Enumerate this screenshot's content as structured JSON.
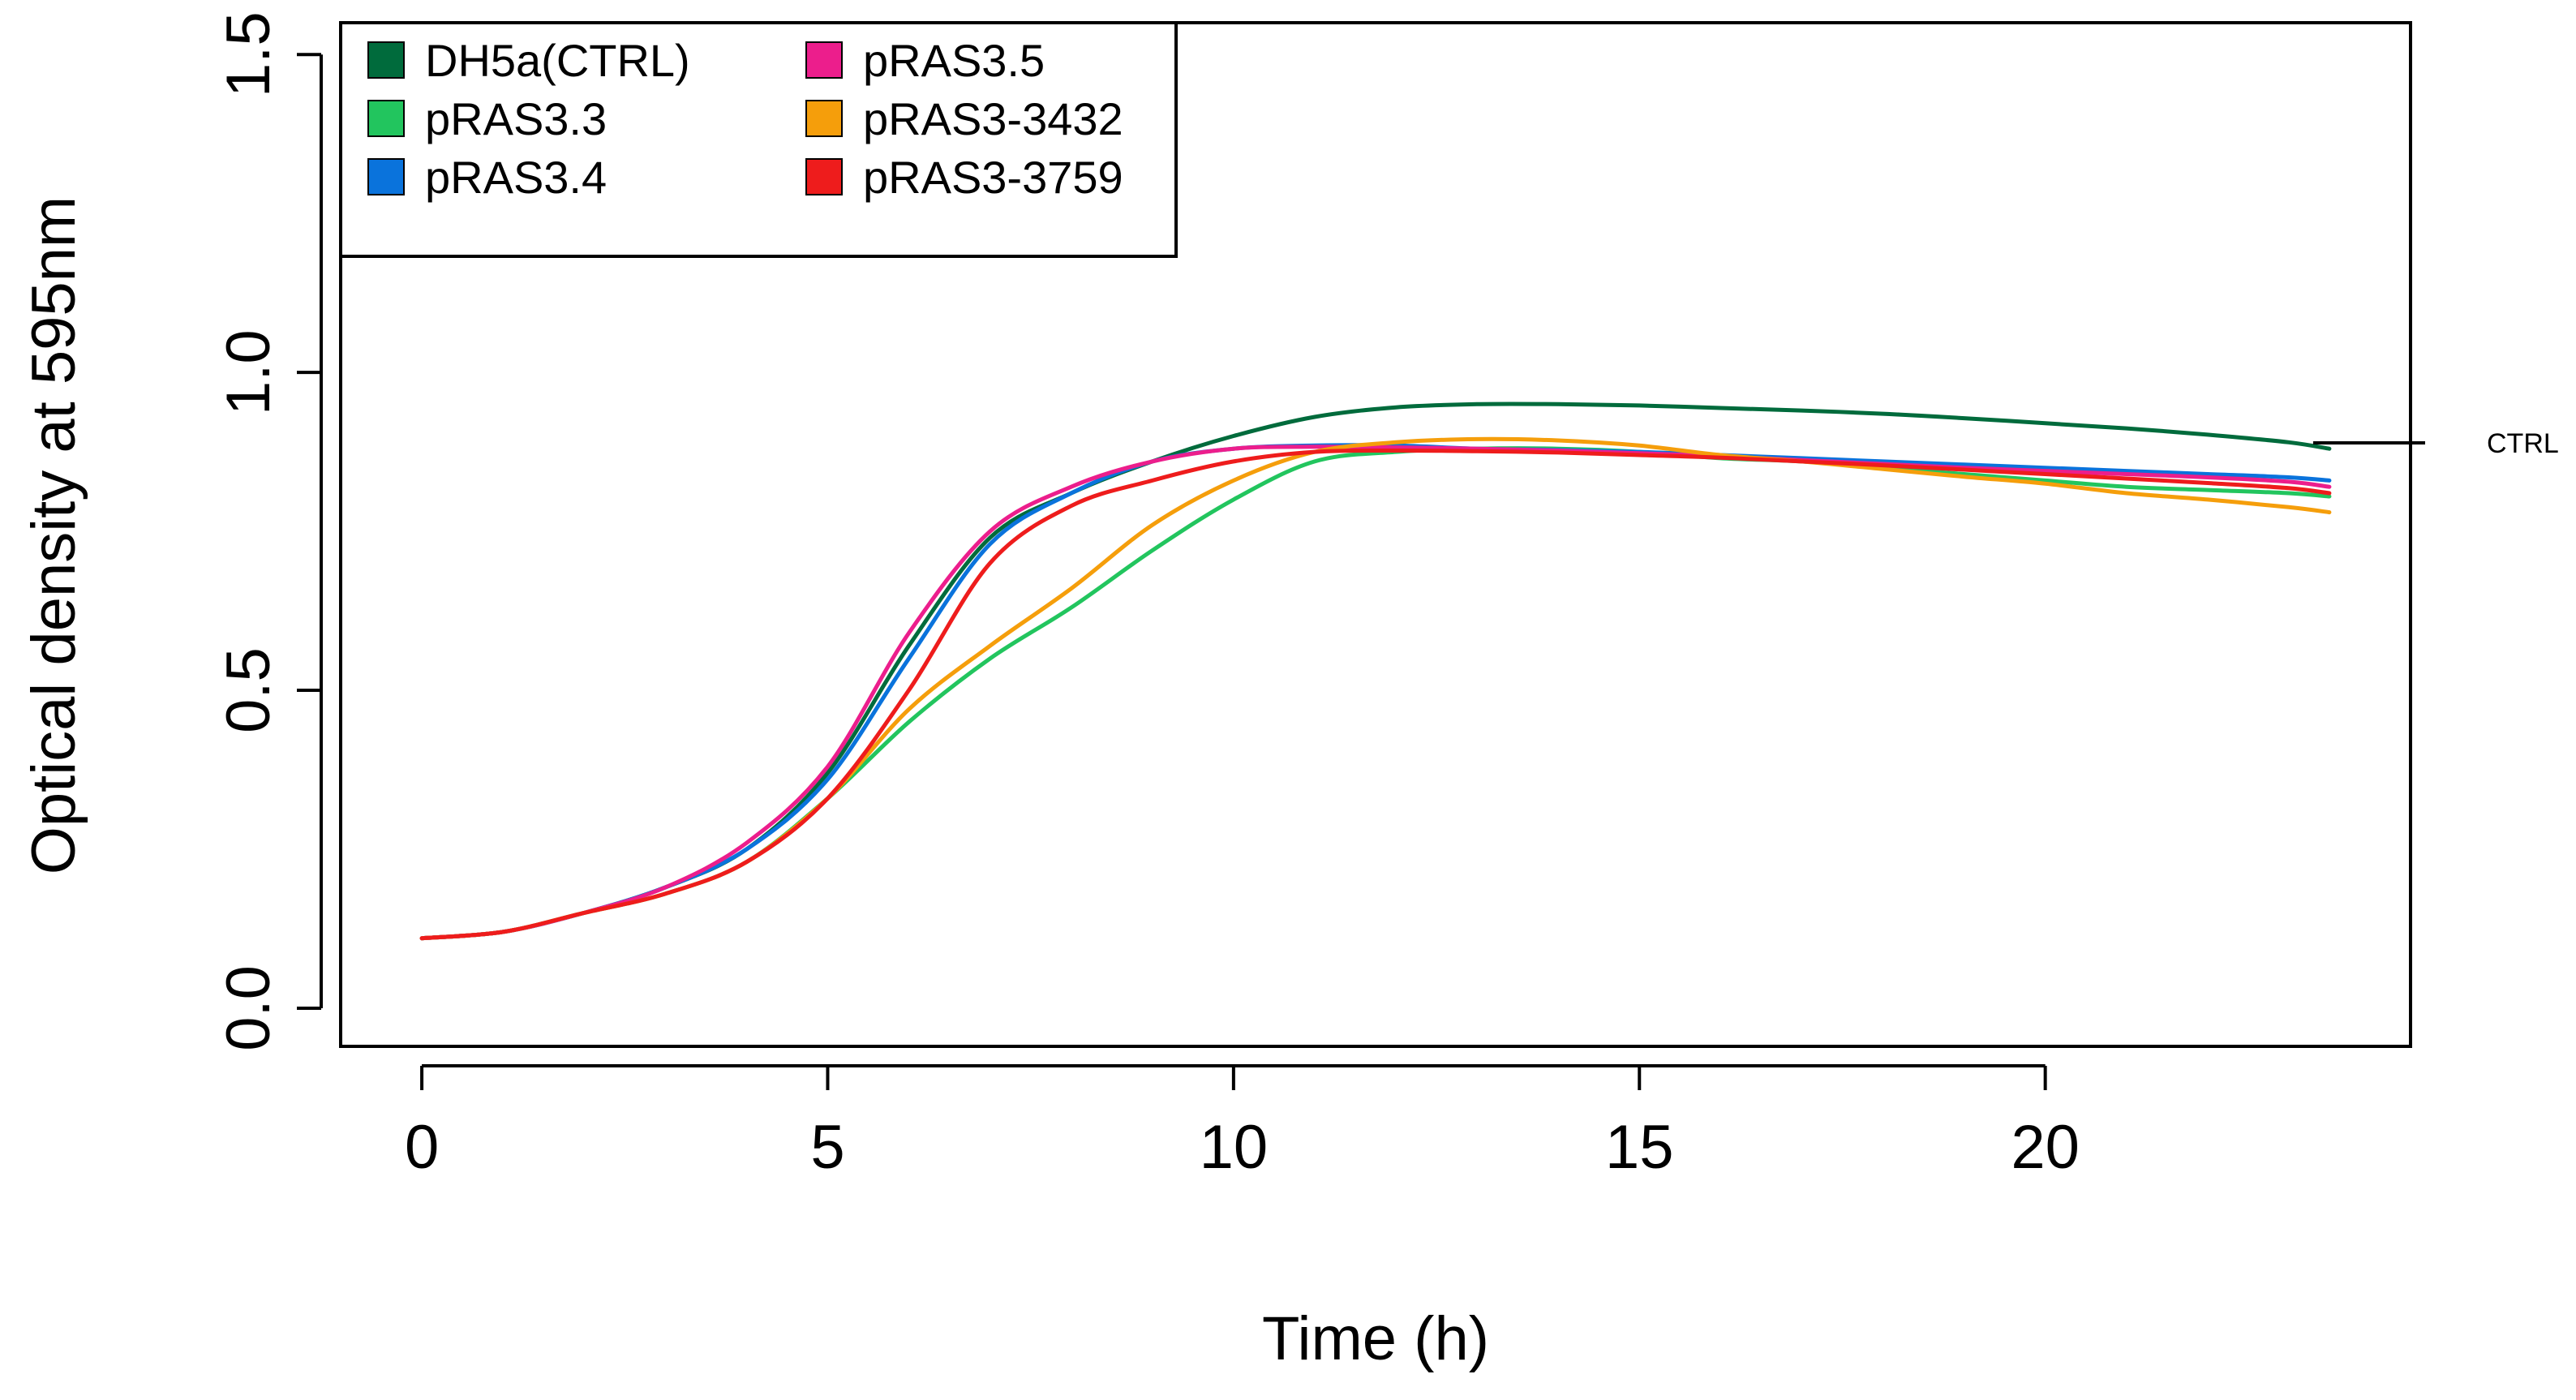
{
  "chart_data": {
    "type": "line",
    "title": "",
    "xlabel": "Time (h)",
    "ylabel": "Optical density at 595nm",
    "xlim": [
      -1.0,
      24.5
    ],
    "ylim": [
      -0.06,
      1.55
    ],
    "x_ticks": [
      0,
      5,
      10,
      15,
      20
    ],
    "x_tick_labels": [
      "0",
      "5",
      "10",
      "15",
      "20"
    ],
    "y_ticks": [
      0.0,
      0.5,
      1.0,
      1.5
    ],
    "y_tick_labels": [
      "0.0",
      "0.5",
      "1.0",
      "1.5"
    ],
    "grid": false,
    "legend_position": "top-left",
    "annotation": {
      "text": "CTRL",
      "series": "DH5a(CTRL)",
      "x": 23.3
    },
    "x": [
      0,
      1,
      2,
      3,
      4,
      5,
      6,
      7,
      8,
      9,
      10,
      11,
      12,
      13,
      14,
      15,
      16,
      17,
      18,
      19,
      20,
      21,
      22,
      23,
      23.5
    ],
    "series": [
      {
        "name": "DH5a(CTRL)",
        "color": "#006b3c",
        "values": [
          0.11,
          0.12,
          0.15,
          0.19,
          0.25,
          0.37,
          0.57,
          0.74,
          0.81,
          0.86,
          0.9,
          0.93,
          0.945,
          0.95,
          0.95,
          0.948,
          0.944,
          0.94,
          0.935,
          0.928,
          0.92,
          0.912,
          0.902,
          0.89,
          0.88
        ]
      },
      {
        "name": "pRAS3.3",
        "color": "#22c55e",
        "values": [
          0.11,
          0.12,
          0.15,
          0.18,
          0.23,
          0.33,
          0.45,
          0.55,
          0.63,
          0.72,
          0.8,
          0.86,
          0.875,
          0.88,
          0.88,
          0.875,
          0.865,
          0.86,
          0.85,
          0.84,
          0.83,
          0.82,
          0.815,
          0.81,
          0.805
        ]
      },
      {
        "name": "pRAS3.4",
        "color": "#0a73dc",
        "values": [
          0.11,
          0.12,
          0.15,
          0.19,
          0.25,
          0.36,
          0.55,
          0.73,
          0.81,
          0.86,
          0.88,
          0.885,
          0.885,
          0.88,
          0.878,
          0.875,
          0.87,
          0.865,
          0.86,
          0.855,
          0.85,
          0.845,
          0.84,
          0.835,
          0.83
        ]
      },
      {
        "name": "pRAS3.5",
        "color": "#ec1e8c",
        "values": [
          0.11,
          0.12,
          0.15,
          0.19,
          0.26,
          0.38,
          0.59,
          0.75,
          0.82,
          0.86,
          0.88,
          0.883,
          0.882,
          0.88,
          0.877,
          0.873,
          0.868,
          0.862,
          0.856,
          0.85,
          0.845,
          0.84,
          0.835,
          0.828,
          0.82
        ]
      },
      {
        "name": "pRAS3-3432",
        "color": "#f59e0b",
        "values": [
          0.11,
          0.12,
          0.15,
          0.18,
          0.23,
          0.33,
          0.47,
          0.57,
          0.66,
          0.76,
          0.83,
          0.875,
          0.89,
          0.895,
          0.893,
          0.885,
          0.87,
          0.86,
          0.848,
          0.836,
          0.825,
          0.81,
          0.8,
          0.788,
          0.78
        ]
      },
      {
        "name": "pRAS3-3759",
        "color": "#ee1c1c",
        "values": [
          0.11,
          0.12,
          0.15,
          0.18,
          0.23,
          0.33,
          0.5,
          0.7,
          0.79,
          0.83,
          0.86,
          0.875,
          0.877,
          0.876,
          0.874,
          0.87,
          0.866,
          0.86,
          0.854,
          0.847,
          0.84,
          0.833,
          0.826,
          0.818,
          0.81
        ]
      }
    ]
  }
}
